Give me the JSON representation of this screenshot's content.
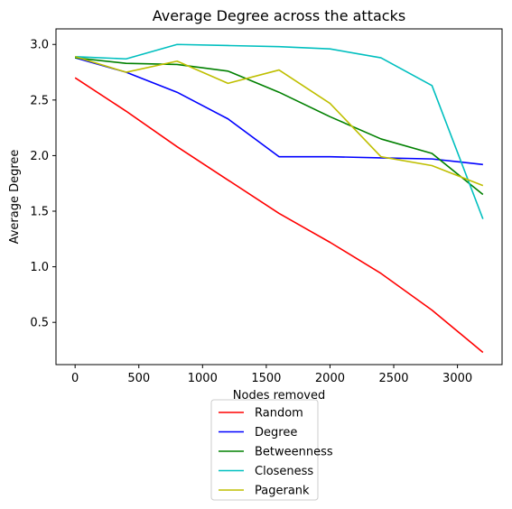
{
  "chart_data": {
    "type": "line",
    "title": "Average Degree across the attacks",
    "xlabel": "Nodes removed",
    "ylabel": "Average Degree",
    "xlim": [
      -150,
      3350
    ],
    "ylim": [
      0.12,
      3.14
    ],
    "xticks": [
      0,
      500,
      1000,
      1500,
      2000,
      2500,
      3000
    ],
    "yticks": [
      0.5,
      1.0,
      1.5,
      2.0,
      2.5,
      3.0
    ],
    "xtick_labels": [
      "0",
      "500",
      "1000",
      "1500",
      "2000",
      "2500",
      "3000"
    ],
    "ytick_labels": [
      "0.5",
      "1.0",
      "1.5",
      "2.0",
      "2.5",
      "3.0"
    ],
    "grid": false,
    "legend_position": "bottom-center, below axes",
    "x": [
      0,
      400,
      800,
      1200,
      1600,
      2000,
      2400,
      2800,
      3200
    ],
    "series": [
      {
        "name": "Random",
        "color": "#ff0000",
        "values": [
          2.7,
          2.4,
          2.08,
          1.78,
          1.48,
          1.22,
          0.94,
          0.61,
          0.23
        ]
      },
      {
        "name": "Degree",
        "color": "#0000ff",
        "values": [
          2.88,
          2.75,
          2.57,
          2.33,
          1.99,
          1.99,
          1.98,
          1.97,
          1.92
        ]
      },
      {
        "name": "Betweenness",
        "color": "#008000",
        "values": [
          2.88,
          2.83,
          2.82,
          2.76,
          2.57,
          2.35,
          2.15,
          2.02,
          1.65
        ]
      },
      {
        "name": "Closeness",
        "color": "#00bfbf",
        "values": [
          2.89,
          2.87,
          3.0,
          2.99,
          2.98,
          2.96,
          2.88,
          2.63,
          1.43
        ]
      },
      {
        "name": "Pagerank",
        "color": "#bfbf00",
        "values": [
          2.89,
          2.75,
          2.85,
          2.65,
          2.77,
          2.47,
          1.99,
          1.91,
          1.73
        ]
      }
    ]
  }
}
